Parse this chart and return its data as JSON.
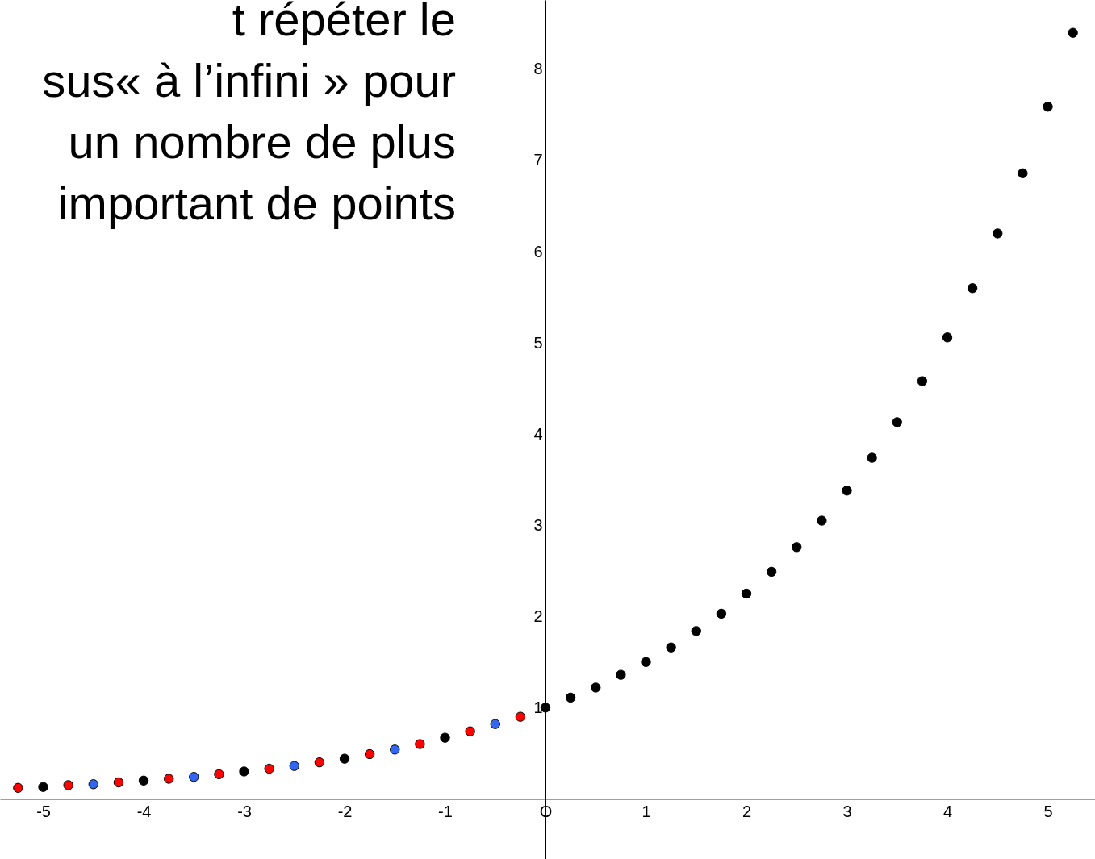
{
  "chart_data": {
    "type": "scatter",
    "annotations": [
      "t répéter le",
      "sus« à l’infini » pour",
      "un nombre de plus",
      "important de points"
    ],
    "xlim": [
      -5.43,
      5.47
    ],
    "ylim": [
      -0.66,
      8.76
    ],
    "xticks": [
      -5,
      -4,
      -3,
      -2,
      -1,
      {
        "value": 0,
        "label": "O"
      },
      1,
      2,
      3,
      4,
      5
    ],
    "yticks": [
      1,
      2,
      3,
      4,
      5,
      6,
      7,
      8
    ],
    "grid": false,
    "marker": "circle",
    "series": [
      {
        "color": "#000000",
        "x": [
          -5,
          -4,
          -3,
          -2,
          -1,
          0,
          0.25,
          0.5,
          0.75,
          1,
          1.25,
          1.5,
          1.75,
          2,
          2.25,
          2.5,
          2.75,
          3,
          3.25,
          3.5,
          3.75,
          4,
          4.25,
          4.5,
          4.75,
          5,
          5.25
        ],
        "values": [
          0.13,
          0.2,
          0.3,
          0.44,
          0.67,
          1,
          1.11,
          1.22,
          1.36,
          1.5,
          1.66,
          1.84,
          2.03,
          2.25,
          2.49,
          2.76,
          3.05,
          3.38,
          3.74,
          4.13,
          4.58,
          5.06,
          5.6,
          6.2,
          6.86,
          7.59,
          8.4
        ]
      },
      {
        "color": "#ff0000",
        "x": [
          -5.25,
          -4.75,
          -4.25,
          -3.75,
          -3.25,
          -2.75,
          -2.25,
          -1.75,
          -1.25,
          -0.75,
          -0.25
        ],
        "values": [
          0.12,
          0.15,
          0.18,
          0.22,
          0.27,
          0.33,
          0.4,
          0.49,
          0.6,
          0.74,
          0.9
        ]
      },
      {
        "color": "#3366ee",
        "x": [
          -4.5,
          -3.5,
          -2.5,
          -1.5,
          -0.5
        ],
        "values": [
          0.16,
          0.24,
          0.36,
          0.54,
          0.82
        ]
      }
    ]
  }
}
